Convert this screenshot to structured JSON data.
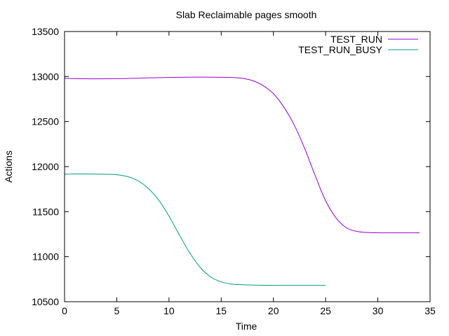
{
  "chart_data": {
    "type": "line",
    "title": "Slab Reclaimable pages smooth",
    "xlabel": "Time",
    "ylabel": "Actions",
    "xlim": [
      0,
      35
    ],
    "ylim": [
      10500,
      13500
    ],
    "xticks": [
      0,
      5,
      10,
      15,
      20,
      25,
      30,
      35
    ],
    "yticks": [
      10500,
      11000,
      11500,
      12000,
      12500,
      13000,
      13500
    ],
    "grid": false,
    "legend_position": "top-right",
    "series": [
      {
        "name": "TEST_RUN",
        "color": "#9400d3",
        "x": [
          0,
          2,
          4,
          6,
          8,
          10,
          12,
          14,
          16,
          17,
          18,
          19,
          20,
          21,
          22,
          23,
          24,
          25,
          26,
          27,
          28,
          29,
          30,
          32,
          34
        ],
        "y": [
          12980,
          12975,
          12975,
          12978,
          12985,
          12990,
          12993,
          12993,
          12990,
          12980,
          12955,
          12900,
          12810,
          12660,
          12460,
          12200,
          11900,
          11620,
          11430,
          11320,
          11280,
          11268,
          11265,
          11265,
          11265
        ]
      },
      {
        "name": "TEST_RUN_BUSY",
        "color": "#009e73",
        "x": [
          0,
          1,
          2,
          3,
          4,
          5,
          6,
          7,
          8,
          9,
          10,
          11,
          12,
          13,
          14,
          15,
          16,
          17,
          18,
          19,
          20,
          21,
          22,
          23,
          24,
          25
        ],
        "y": [
          11915,
          11918,
          11918,
          11917,
          11915,
          11910,
          11890,
          11845,
          11760,
          11630,
          11450,
          11240,
          11040,
          10880,
          10775,
          10720,
          10695,
          10688,
          10685,
          10683,
          10682,
          10682,
          10682,
          10682,
          10682,
          10682
        ]
      }
    ]
  }
}
